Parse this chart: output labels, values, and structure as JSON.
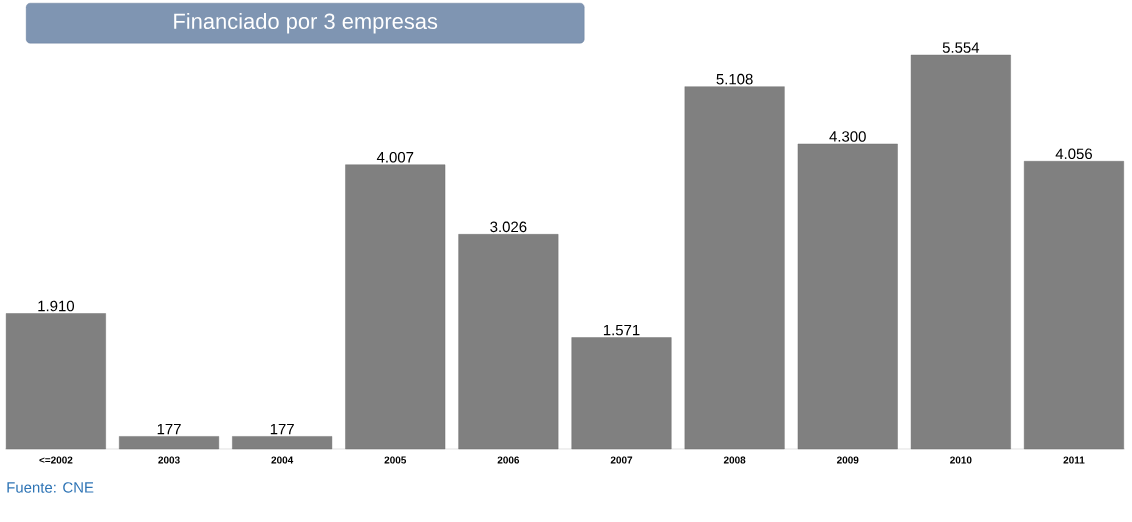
{
  "chart_data": {
    "type": "bar",
    "title": "Financiado por 3 empresas",
    "categories": [
      "<=2002",
      "2003",
      "2004",
      "2005",
      "2006",
      "2007",
      "2008",
      "2009",
      "2010",
      "2011"
    ],
    "values": [
      1910,
      177,
      177,
      4007,
      3026,
      1571,
      5108,
      4300,
      5554,
      4056
    ],
    "value_labels": [
      "1.910",
      "177",
      "177",
      "4.007",
      "3.026",
      "1.571",
      "5.108",
      "4.300",
      "5.554",
      "4.056"
    ],
    "color": "#808080",
    "annotations": [
      "Fuente: CNE"
    ]
  }
}
